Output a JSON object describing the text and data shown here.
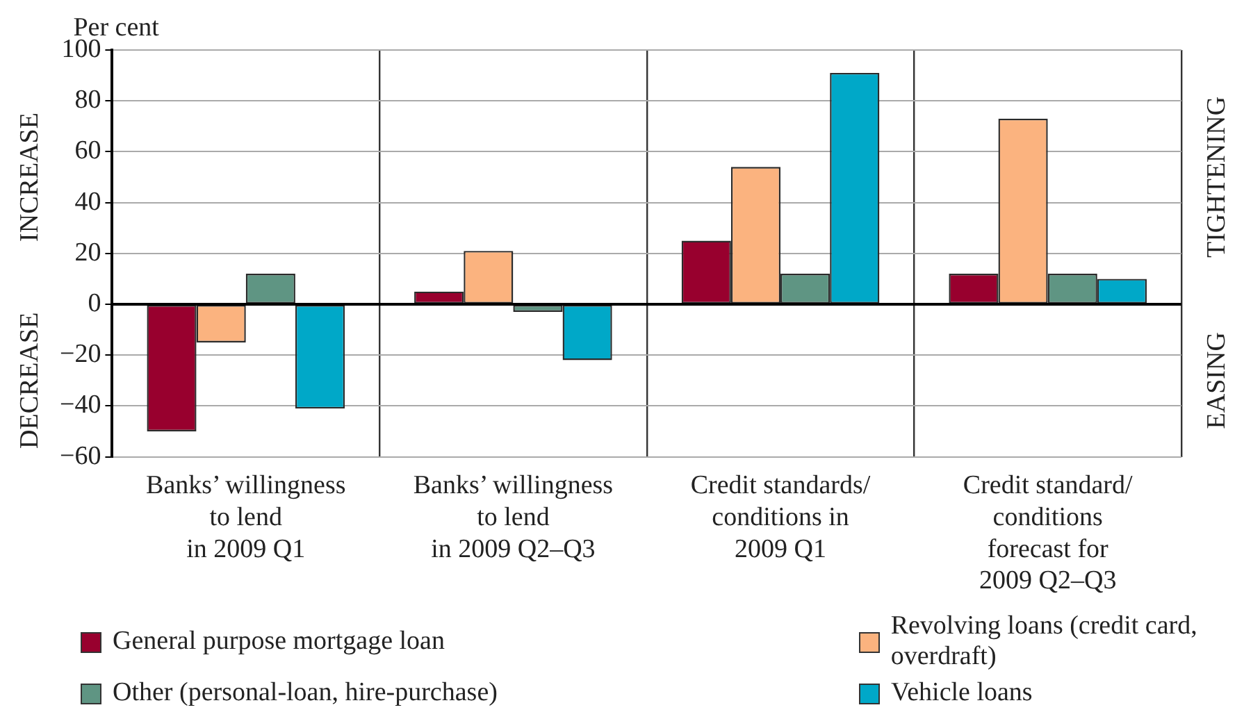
{
  "chart_data": {
    "type": "bar",
    "ylabel": "Per cent",
    "categories": [
      "Banks’ willingness\nto lend\nin 2009 Q1",
      "Banks’ willingness\nto lend\nin 2009 Q2–Q3",
      "Credit standards/\nconditions in\n2009 Q1",
      "Credit standard/\nconditions\nforecast for\n2009 Q2–Q3"
    ],
    "series": [
      {
        "name": "General purpose mortgage loan",
        "color": "#98002e",
        "values": [
          -50,
          5,
          25,
          12
        ]
      },
      {
        "name": "Revolving loans (credit card, overdraft)",
        "color": "#fbb37f",
        "values": [
          -15,
          21,
          54,
          73
        ]
      },
      {
        "name": "Other (personal-loan, hire-purchase)",
        "color": "#5f9583",
        "values": [
          12,
          -3,
          12,
          12
        ]
      },
      {
        "name": "Vehicle loans",
        "color": "#00a8c8",
        "values": [
          -41,
          -22,
          91,
          10
        ]
      }
    ],
    "ylim": [
      -60,
      100
    ],
    "yticks": [
      -60,
      -40,
      -20,
      0,
      20,
      40,
      60,
      80,
      100
    ],
    "grid": true,
    "legend": "bottom",
    "annotations": [
      "INCREASE",
      "DECREASE",
      "TIGHTENING",
      "EASING"
    ]
  }
}
